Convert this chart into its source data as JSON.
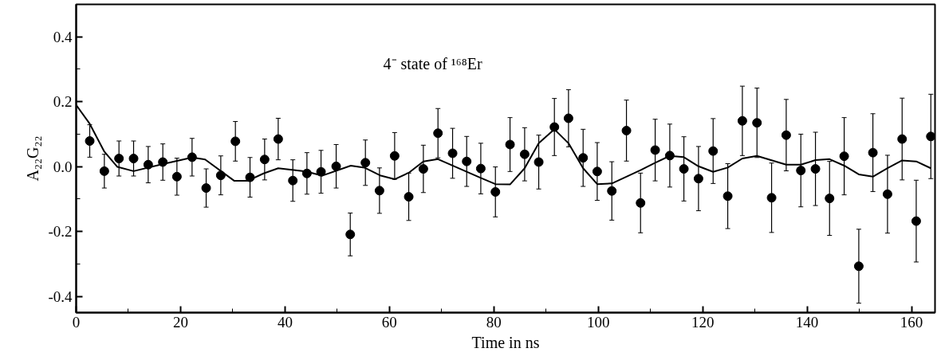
{
  "chart_data": {
    "type": "scatter",
    "xlabel": "Time in ns",
    "ylabel": "A₂₂G₂₂",
    "annotations": [
      "4⁻ state of ¹⁶⁸Er"
    ],
    "xlim": [
      0,
      164.5
    ],
    "ylim": [
      -0.45,
      0.5
    ],
    "xticks": [
      0,
      20,
      40,
      60,
      80,
      100,
      120,
      140,
      160
    ],
    "yticks": [
      {
        "value": -0.4,
        "label": "-0.4"
      },
      {
        "value": -0.2,
        "label": "-0.2"
      },
      {
        "value": 0,
        "label": "0.0"
      },
      {
        "value": 0.2,
        "label": "0.2"
      },
      {
        "value": 0.4,
        "label": "0.4"
      }
    ],
    "grid": false,
    "series": [
      {
        "color": "#000000",
        "marker": "circle",
        "x": [
          2.6,
          5.4,
          8.2,
          11.0,
          13.8,
          16.6,
          19.3,
          22.2,
          24.9,
          27.7,
          30.5,
          33.3,
          36.1,
          38.7,
          41.5,
          44.2,
          46.9,
          49.8,
          52.5,
          55.4,
          58.1,
          61.0,
          63.7,
          66.5,
          69.3,
          72.1,
          74.8,
          77.5,
          80.3,
          83.1,
          85.9,
          88.6,
          91.6,
          94.3,
          97.1,
          99.8,
          102.6,
          105.4,
          108.1,
          110.9,
          113.7,
          116.4,
          119.2,
          122.0,
          124.8,
          127.6,
          130.4,
          133.2,
          136.0,
          138.8,
          141.6,
          144.3,
          147.1,
          149.9,
          152.6,
          155.4,
          158.2,
          160.9,
          163.7
        ],
        "values": [
          0.079,
          -0.014,
          0.025,
          0.025,
          0.006,
          0.014,
          -0.031,
          0.029,
          -0.066,
          -0.027,
          0.078,
          -0.033,
          0.022,
          0.085,
          -0.043,
          -0.021,
          -0.016,
          0.001,
          -0.209,
          0.012,
          -0.074,
          0.033,
          -0.093,
          -0.007,
          0.103,
          0.041,
          0.016,
          -0.006,
          -0.078,
          0.068,
          0.038,
          0.014,
          0.122,
          0.149,
          0.027,
          -0.015,
          -0.075,
          0.111,
          -0.112,
          0.051,
          0.034,
          -0.007,
          -0.037,
          0.048,
          -0.091,
          0.141,
          0.135,
          -0.096,
          0.097,
          -0.012,
          -0.007,
          -0.098,
          0.032,
          -0.307,
          0.043,
          -0.085,
          0.085,
          -0.168,
          0.093
        ],
        "errors": [
          0.05,
          0.052,
          0.054,
          0.054,
          0.056,
          0.056,
          0.057,
          0.058,
          0.059,
          0.06,
          0.061,
          0.061,
          0.063,
          0.064,
          0.064,
          0.064,
          0.066,
          0.067,
          0.066,
          0.07,
          0.07,
          0.072,
          0.073,
          0.073,
          0.076,
          0.077,
          0.077,
          0.078,
          0.077,
          0.083,
          0.082,
          0.083,
          0.088,
          0.088,
          0.088,
          0.089,
          0.09,
          0.094,
          0.092,
          0.095,
          0.097,
          0.099,
          0.099,
          0.1,
          0.1,
          0.107,
          0.107,
          0.107,
          0.11,
          0.112,
          0.113,
          0.114,
          0.119,
          0.114,
          0.12,
          0.12,
          0.126,
          0.126,
          0.13
        ]
      },
      {
        "type": "line",
        "color": "#000000",
        "marker": "none",
        "line_style": "solid",
        "x": [
          0,
          2.6,
          5.4,
          7.9,
          11.0,
          16.6,
          22.2,
          24.7,
          30.3,
          32.8,
          35.9,
          38.7,
          44.0,
          47.1,
          52.6,
          55.2,
          58.2,
          61.0,
          63.7,
          66.5,
          69.3,
          77.5,
          80.3,
          83.1,
          85.9,
          88.6,
          91.6,
          94.3,
          97.1,
          99.8,
          102.6,
          108.1,
          110.9,
          113.7,
          116.4,
          119.2,
          122.0,
          124.8,
          127.6,
          130.4,
          136.0,
          138.8,
          141.6,
          144.3,
          147.1,
          149.9,
          152.6,
          155.4,
          158.2,
          160.9,
          163.7
        ],
        "values": [
          0.19,
          0.132,
          0.046,
          -0.001,
          -0.014,
          0.008,
          0.028,
          0.022,
          -0.044,
          -0.044,
          -0.021,
          -0.005,
          -0.015,
          -0.028,
          0.003,
          -0.003,
          -0.027,
          -0.039,
          -0.019,
          0.016,
          0.023,
          -0.035,
          -0.054,
          -0.055,
          -0.005,
          0.072,
          0.115,
          0.072,
          -0.005,
          -0.054,
          -0.052,
          -0.011,
          0.012,
          0.033,
          0.029,
          0.001,
          -0.016,
          -0.003,
          0.025,
          0.033,
          0.006,
          0.006,
          0.02,
          0.023,
          0.003,
          -0.024,
          -0.031,
          -0.005,
          0.019,
          0.016,
          -0.005
        ]
      }
    ]
  }
}
